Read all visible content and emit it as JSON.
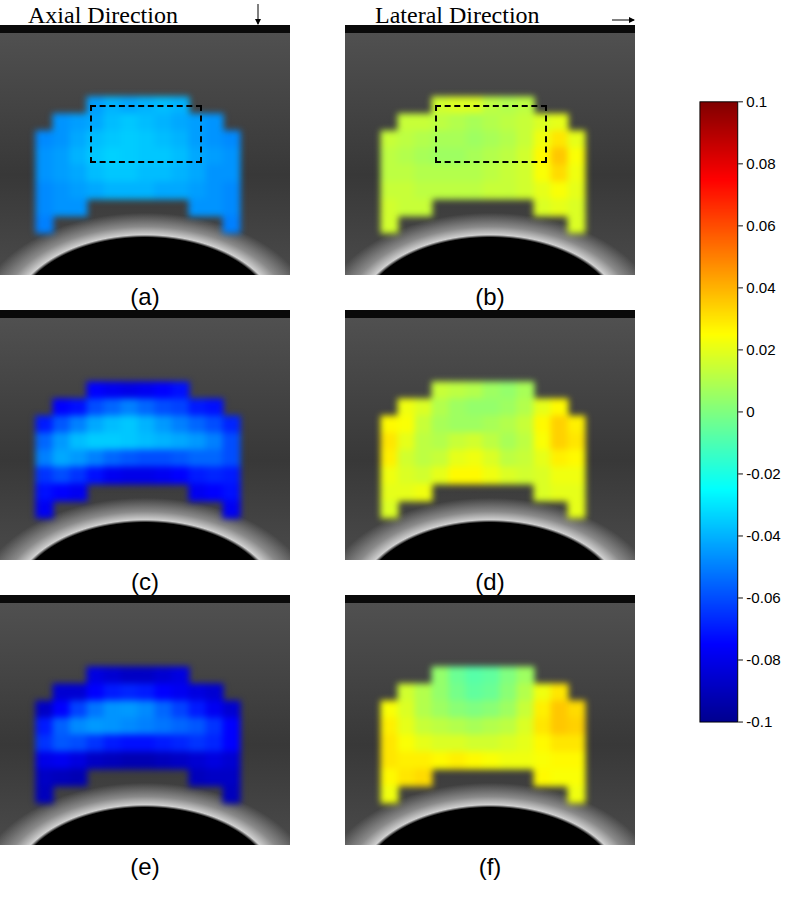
{
  "chart_data": {
    "type": "heatmap",
    "titles": [
      "Axial Direction",
      "Lateral Direction"
    ],
    "color": "jet",
    "tick_labels": false,
    "color_range": [
      -0.1,
      0.1
    ],
    "color_ticks": [
      -0.1,
      -0.08,
      -0.06,
      -0.04,
      -0.02,
      0,
      0.02,
      0.04,
      0.06,
      0.08,
      0.1
    ],
    "panels": [
      {
        "label": "(a)",
        "cells": [
          [
            null,
            null,
            null,
            -0.044,
            -0.04,
            -0.042,
            -0.04,
            -0.038,
            -0.04,
            null,
            null,
            null
          ],
          [
            null,
            -0.046,
            -0.044,
            -0.042,
            -0.038,
            -0.036,
            -0.038,
            -0.04,
            -0.042,
            -0.044,
            -0.046,
            null
          ],
          [
            -0.048,
            -0.046,
            -0.042,
            -0.038,
            -0.036,
            -0.035,
            -0.036,
            -0.038,
            -0.04,
            -0.044,
            -0.046,
            -0.048
          ],
          [
            -0.046,
            -0.044,
            -0.04,
            -0.036,
            -0.034,
            -0.035,
            -0.036,
            -0.036,
            -0.038,
            -0.042,
            -0.044,
            -0.046
          ],
          [
            -0.046,
            -0.044,
            -0.042,
            -0.038,
            -0.036,
            -0.036,
            -0.038,
            -0.038,
            -0.04,
            -0.042,
            -0.046,
            -0.046
          ],
          [
            -0.048,
            -0.046,
            -0.044,
            -0.042,
            -0.04,
            -0.04,
            -0.04,
            -0.042,
            -0.042,
            -0.044,
            -0.046,
            -0.048
          ],
          [
            -0.048,
            -0.046,
            -0.046,
            null,
            null,
            null,
            null,
            null,
            null,
            -0.046,
            -0.046,
            -0.048
          ],
          [
            -0.05,
            null,
            null,
            null,
            null,
            null,
            null,
            null,
            null,
            null,
            null,
            -0.05
          ]
        ]
      },
      {
        "label": "(b)",
        "cells": [
          [
            null,
            null,
            null,
            0.016,
            0.018,
            0.018,
            0.012,
            0.01,
            0.012,
            null,
            null,
            null
          ],
          [
            null,
            0.014,
            0.014,
            0.012,
            0.01,
            0.008,
            0.01,
            0.012,
            0.014,
            0.018,
            0.02,
            null
          ],
          [
            0.014,
            0.012,
            0.01,
            0.008,
            0.008,
            0.006,
            0.008,
            0.01,
            0.014,
            0.022,
            0.03,
            0.02
          ],
          [
            0.012,
            0.01,
            0.008,
            0.006,
            0.006,
            0.008,
            0.01,
            0.012,
            0.016,
            0.026,
            0.036,
            0.024
          ],
          [
            0.012,
            0.012,
            0.01,
            0.01,
            0.01,
            0.01,
            0.012,
            0.014,
            0.016,
            0.024,
            0.032,
            0.022
          ],
          [
            0.014,
            0.014,
            0.012,
            0.012,
            0.012,
            0.012,
            0.014,
            0.014,
            0.016,
            0.02,
            0.024,
            0.02
          ],
          [
            0.016,
            0.014,
            0.014,
            null,
            null,
            null,
            null,
            null,
            null,
            0.018,
            0.02,
            0.018
          ],
          [
            0.016,
            null,
            null,
            null,
            null,
            null,
            null,
            null,
            null,
            null,
            null,
            0.018
          ]
        ]
      },
      {
        "label": "(c)",
        "cells": [
          [
            null,
            null,
            null,
            -0.075,
            -0.078,
            -0.08,
            -0.078,
            -0.075,
            -0.072,
            null,
            null,
            null
          ],
          [
            null,
            -0.075,
            -0.072,
            -0.06,
            -0.055,
            -0.05,
            -0.055,
            -0.06,
            -0.062,
            -0.07,
            -0.072,
            null
          ],
          [
            -0.07,
            -0.058,
            -0.05,
            -0.042,
            -0.038,
            -0.036,
            -0.04,
            -0.045,
            -0.05,
            -0.055,
            -0.06,
            -0.068
          ],
          [
            -0.055,
            -0.045,
            -0.038,
            -0.035,
            -0.035,
            -0.036,
            -0.038,
            -0.04,
            -0.042,
            -0.045,
            -0.05,
            -0.06
          ],
          [
            -0.05,
            -0.042,
            -0.045,
            -0.05,
            -0.055,
            -0.058,
            -0.06,
            -0.06,
            -0.058,
            -0.055,
            -0.055,
            -0.06
          ],
          [
            -0.065,
            -0.06,
            -0.065,
            -0.072,
            -0.078,
            -0.08,
            -0.08,
            -0.078,
            -0.075,
            -0.07,
            -0.068,
            -0.07
          ],
          [
            -0.072,
            -0.075,
            -0.078,
            null,
            null,
            null,
            null,
            null,
            null,
            -0.078,
            -0.075,
            -0.072
          ],
          [
            -0.078,
            null,
            null,
            null,
            null,
            null,
            null,
            null,
            null,
            null,
            null,
            -0.078
          ]
        ]
      },
      {
        "label": "(d)",
        "cells": [
          [
            null,
            null,
            null,
            0.014,
            0.012,
            0.01,
            0.006,
            0.004,
            0.008,
            null,
            null,
            null
          ],
          [
            null,
            0.022,
            0.018,
            0.01,
            0.006,
            0.004,
            0.004,
            0.006,
            0.01,
            0.02,
            0.026,
            null
          ],
          [
            0.026,
            0.024,
            0.014,
            0.008,
            0.006,
            0.006,
            0.008,
            0.01,
            0.014,
            0.026,
            0.034,
            0.028
          ],
          [
            0.03,
            0.02,
            0.012,
            0.01,
            0.014,
            0.016,
            0.012,
            0.008,
            0.012,
            0.024,
            0.034,
            0.03
          ],
          [
            0.028,
            0.016,
            0.012,
            0.014,
            0.02,
            0.022,
            0.018,
            0.012,
            0.014,
            0.02,
            0.028,
            0.026
          ],
          [
            0.022,
            0.018,
            0.016,
            0.02,
            0.026,
            0.026,
            0.022,
            0.018,
            0.016,
            0.018,
            0.022,
            0.022
          ],
          [
            0.02,
            0.02,
            0.022,
            null,
            null,
            null,
            null,
            null,
            null,
            0.018,
            0.02,
            0.02
          ],
          [
            0.018,
            null,
            null,
            null,
            null,
            null,
            null,
            null,
            null,
            null,
            null,
            0.02
          ]
        ]
      },
      {
        "label": "(e)",
        "cells": [
          [
            null,
            null,
            null,
            -0.082,
            -0.085,
            -0.088,
            -0.088,
            -0.085,
            -0.082,
            null,
            null,
            null
          ],
          [
            null,
            -0.085,
            -0.085,
            -0.075,
            -0.07,
            -0.068,
            -0.07,
            -0.075,
            -0.078,
            -0.082,
            -0.085,
            null
          ],
          [
            -0.088,
            -0.075,
            -0.062,
            -0.052,
            -0.046,
            -0.045,
            -0.048,
            -0.055,
            -0.062,
            -0.07,
            -0.078,
            -0.085
          ],
          [
            -0.07,
            -0.056,
            -0.048,
            -0.045,
            -0.046,
            -0.048,
            -0.05,
            -0.052,
            -0.055,
            -0.058,
            -0.065,
            -0.075
          ],
          [
            -0.065,
            -0.058,
            -0.06,
            -0.065,
            -0.07,
            -0.072,
            -0.072,
            -0.07,
            -0.068,
            -0.065,
            -0.068,
            -0.075
          ],
          [
            -0.08,
            -0.078,
            -0.082,
            -0.088,
            -0.09,
            -0.092,
            -0.092,
            -0.09,
            -0.088,
            -0.085,
            -0.082,
            -0.085
          ],
          [
            -0.088,
            -0.09,
            -0.092,
            null,
            null,
            null,
            null,
            null,
            null,
            -0.09,
            -0.088,
            -0.088
          ],
          [
            -0.09,
            null,
            null,
            null,
            null,
            null,
            null,
            null,
            null,
            null,
            null,
            -0.09
          ]
        ]
      },
      {
        "label": "(f)",
        "cells": [
          [
            null,
            null,
            null,
            0.004,
            -0.004,
            -0.008,
            -0.006,
            0,
            0.006,
            null,
            null,
            null
          ],
          [
            null,
            0.016,
            0.01,
            0.004,
            -0.002,
            -0.006,
            -0.004,
            0.002,
            0.01,
            0.022,
            0.03,
            null
          ],
          [
            0.024,
            0.018,
            0.01,
            0.006,
            0.002,
            0,
            0.002,
            0.006,
            0.014,
            0.028,
            0.036,
            0.032
          ],
          [
            0.028,
            0.02,
            0.014,
            0.012,
            0.01,
            0.008,
            0.01,
            0.012,
            0.018,
            0.03,
            0.036,
            0.034
          ],
          [
            0.03,
            0.024,
            0.02,
            0.018,
            0.018,
            0.016,
            0.016,
            0.018,
            0.02,
            0.026,
            0.03,
            0.03
          ],
          [
            0.03,
            0.028,
            0.028,
            0.026,
            0.028,
            0.026,
            0.024,
            0.022,
            0.022,
            0.024,
            0.026,
            0.026
          ],
          [
            0.026,
            0.03,
            0.032,
            null,
            null,
            null,
            null,
            null,
            null,
            0.026,
            0.024,
            0.024
          ],
          [
            0.022,
            null,
            null,
            null,
            null,
            null,
            null,
            null,
            null,
            null,
            null,
            0.022
          ]
        ]
      }
    ]
  }
}
